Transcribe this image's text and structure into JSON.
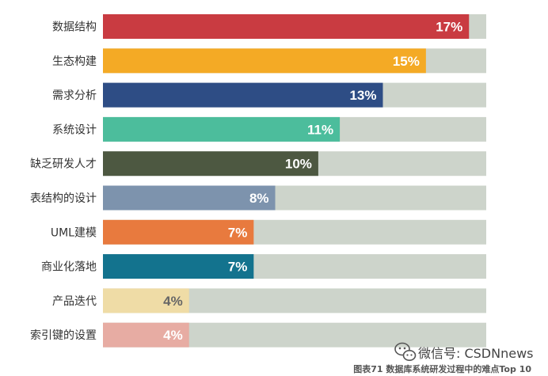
{
  "chart_data": {
    "type": "bar",
    "orientation": "horizontal",
    "categories": [
      "数据结构",
      "生态构建",
      "需求分析",
      "系统设计",
      "缺乏研发人才",
      "表结构的设计",
      "UML建模",
      "商业化落地",
      "产品迭代",
      "索引键的设置"
    ],
    "values": [
      17,
      15,
      13,
      11,
      10,
      8,
      7,
      7,
      4,
      4
    ],
    "value_labels": [
      "17%",
      "15%",
      "13%",
      "11%",
      "10%",
      "8%",
      "7%",
      "7%",
      "4%",
      "4%"
    ],
    "bar_colors": [
      "#c93b41",
      "#f4aa25",
      "#2e4d85",
      "#4cbd9c",
      "#4d5841",
      "#7d93ad",
      "#e87a3e",
      "#13738e",
      "#efdca6",
      "#e7aca3"
    ],
    "label_colors": [
      "#ffffff",
      "#ffffff",
      "#ffffff",
      "#ffffff",
      "#ffffff",
      "#ffffff",
      "#ffffff",
      "#ffffff",
      "#666666",
      "#ffffff"
    ],
    "track_color": "#cdd4cb",
    "xlim": [
      0,
      17.8
    ],
    "grid": false,
    "caption": "图表71 数据库系统研发过程中的难点Top 10"
  },
  "watermark": {
    "text": "微信号: CSDNnews",
    "icon": "wechat-icon"
  }
}
